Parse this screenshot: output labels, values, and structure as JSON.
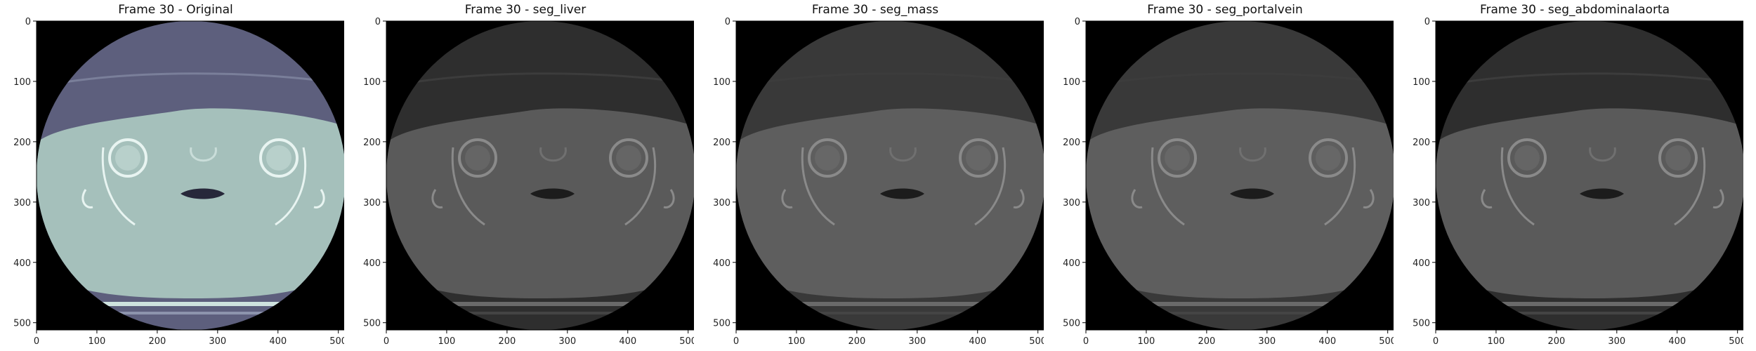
{
  "figure": {
    "panels": [
      {
        "title": "Frame 30 - Original",
        "style": "tinted"
      },
      {
        "title": "Frame 30 - seg_liver",
        "style": "gray"
      },
      {
        "title": "Frame 30 - seg_mass",
        "style": "grayflat"
      },
      {
        "title": "Frame 30 - seg_portalvein",
        "style": "grayflat"
      },
      {
        "title": "Frame 30 - seg_abdominalaorta",
        "style": "gray"
      }
    ],
    "y_ticks": [
      "0",
      "100",
      "200",
      "300",
      "400",
      "500"
    ],
    "x_ticks": [
      "0",
      "100",
      "200",
      "300",
      "400",
      "500"
    ],
    "y_tick_values": [
      0,
      100,
      200,
      300,
      400,
      500
    ],
    "x_tick_values": [
      0,
      100,
      200,
      300,
      400,
      500
    ],
    "image_extent": [
      0,
      512
    ],
    "colors": {
      "background": "#000000",
      "tinted_fov": "#5d5f7d",
      "tinted_body": "#a5c0bb",
      "gray_fov": "#2e2e2e",
      "gray_body": "#5a5a5a",
      "flat_fov": "#393939",
      "flat_body": "#5e5e5e"
    }
  }
}
